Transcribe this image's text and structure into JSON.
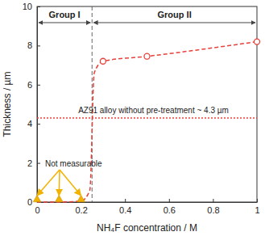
{
  "chart_data": {
    "type": "line",
    "x_label": "NH₄F concentration / M",
    "y_label": "Thickness / µm",
    "xlim": [
      0,
      1
    ],
    "xticks": [
      0,
      0.2,
      0.4,
      0.6,
      0.8,
      1
    ],
    "ylim": [
      0,
      10
    ],
    "yticks": [
      0,
      2,
      4,
      6,
      8,
      10
    ],
    "grid": false,
    "series": [
      {
        "type": "line",
        "x": [
          0,
          0.1,
          0.2,
          0.24,
          0.26,
          0.3,
          0.5,
          1
        ],
        "values": [
          0,
          0,
          0.05,
          0.6,
          6.6,
          7.2,
          7.45,
          8.2
        ],
        "color": "#e8403a",
        "line_style": "dashed",
        "marker": "none"
      },
      {
        "type": "scatter",
        "x": [
          0.3,
          0.5,
          1
        ],
        "values": [
          7.2,
          7.45,
          8.2
        ],
        "color": "#e8403a",
        "marker": "open-circle"
      },
      {
        "type": "scatter",
        "x": [
          0,
          0.1,
          0.2
        ],
        "values": [
          0,
          0,
          0
        ],
        "color": "#f2b200",
        "marker": "triangle",
        "label": "Not measurable"
      }
    ],
    "reference_lines": [
      {
        "axis": "y",
        "value": 4.3,
        "color": "#e8403a",
        "line_style": "dotted",
        "label": "AZ91 alloy without pre-treatment ~ 4.3 µm"
      },
      {
        "axis": "x",
        "value": 0.25,
        "color": "#666666",
        "line_style": "dashed"
      }
    ],
    "groups": [
      {
        "label": "Group I",
        "x": [
          0,
          0.25
        ]
      },
      {
        "label": "Group II",
        "x": [
          0.25,
          1
        ]
      }
    ]
  }
}
